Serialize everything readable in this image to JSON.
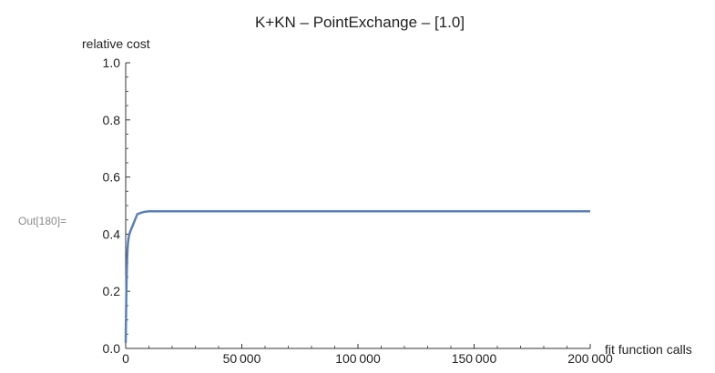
{
  "cell": {
    "out_label": "Out[180]="
  },
  "chart_data": {
    "type": "line",
    "title": "K+KN – PointExchange – [1.0]",
    "xlabel": "fit function calls",
    "ylabel": "relative cost",
    "xlim": [
      0,
      200000
    ],
    "ylim": [
      0,
      1.0
    ],
    "x_ticks": [
      0,
      50000,
      100000,
      150000,
      200000
    ],
    "x_tick_labels": [
      "0",
      "50 000",
      "100 000",
      "150 000",
      "200 000"
    ],
    "y_ticks": [
      0,
      0.2,
      0.4,
      0.6,
      0.8,
      1.0
    ],
    "y_tick_labels": [
      "0.0",
      "0.2",
      "0.4",
      "0.6",
      "0.8",
      "1.0"
    ],
    "grid": false,
    "series": [
      {
        "color": "#5b80b4",
        "x": [
          0,
          200,
          400,
          600,
          800,
          1000,
          1300,
          1600,
          2000,
          2500,
          3000,
          3500,
          4000,
          4500,
          5000,
          6000,
          7000,
          8000,
          10000,
          12000,
          200000
        ],
        "y": [
          0.02,
          0.15,
          0.25,
          0.31,
          0.35,
          0.37,
          0.39,
          0.4,
          0.41,
          0.42,
          0.43,
          0.44,
          0.45,
          0.46,
          0.47,
          0.473,
          0.476,
          0.478,
          0.48,
          0.48,
          0.48
        ]
      }
    ]
  }
}
